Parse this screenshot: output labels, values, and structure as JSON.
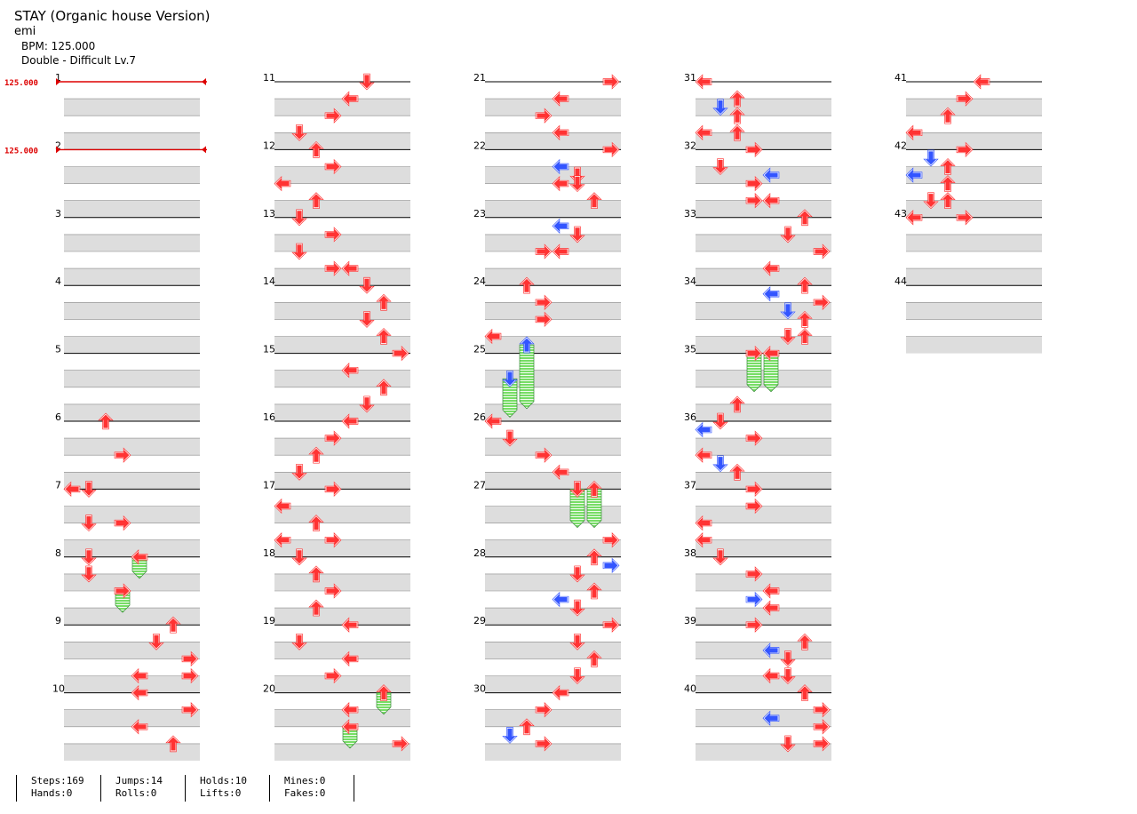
{
  "song": {
    "title": "STAY (Organic house Version)",
    "artist": "emi",
    "bpm_text": "BPM: 125.000",
    "difficulty_text": "Double - Difficult  Lv.7"
  },
  "bpm_markers": [
    {
      "measure": 1,
      "label": "125.000"
    },
    {
      "measure": 2,
      "label": "125.000"
    }
  ],
  "colors": {
    "arrow_red": "#ff3333",
    "arrow_blue": "#3355ff",
    "hold_green": "#77dd66",
    "stripe_gray": "#dddddd",
    "bpm_red": "#dd0000"
  },
  "measures": [
    {
      "label": "1",
      "notes": []
    },
    {
      "label": "2",
      "notes": []
    },
    {
      "label": "3",
      "notes": []
    },
    {
      "label": "4",
      "notes": []
    },
    {
      "label": "5",
      "notes": []
    },
    {
      "label": "6",
      "notes": [
        [
          0,
          2,
          "up",
          0
        ],
        [
          1,
          3,
          "right",
          0
        ],
        [
          2,
          1,
          "down",
          0
        ],
        [
          3,
          1,
          "down",
          0
        ]
      ]
    },
    {
      "label": "7",
      "notes": [
        [
          0,
          0,
          "left",
          0
        ],
        [
          1,
          3,
          "right",
          0
        ],
        [
          2,
          1,
          "down",
          0
        ],
        [
          2.5,
          1,
          "down",
          0
        ]
      ]
    },
    {
      "label": "8",
      "notes": [
        [
          0,
          4,
          "left",
          0,
          "hold",
          0.5
        ],
        [
          1,
          3,
          "right",
          0,
          "hold",
          0.5
        ]
      ]
    },
    {
      "label": "9",
      "notes": [
        [
          0,
          6,
          "up",
          0
        ],
        [
          0.5,
          5,
          "down",
          0
        ],
        [
          1,
          7,
          "right",
          0
        ],
        [
          1.5,
          4,
          "left",
          0
        ],
        [
          1.5,
          7,
          "right",
          0
        ]
      ]
    },
    {
      "label": "10",
      "notes": [
        [
          0,
          4,
          "left",
          0
        ],
        [
          0.5,
          7,
          "right",
          0
        ],
        [
          1,
          4,
          "left",
          0
        ],
        [
          1.5,
          6,
          "up",
          0
        ]
      ]
    },
    {
      "label": "11",
      "notes": [
        [
          0,
          5,
          "down",
          0
        ],
        [
          0.5,
          4,
          "left",
          0
        ],
        [
          1,
          3,
          "right",
          0
        ],
        [
          1.5,
          1,
          "down",
          0
        ]
      ]
    },
    {
      "label": "12",
      "notes": [
        [
          0,
          2,
          "up",
          0
        ],
        [
          0.5,
          3,
          "right",
          0
        ],
        [
          1,
          0,
          "left",
          0
        ],
        [
          1.5,
          2,
          "up",
          0
        ]
      ]
    },
    {
      "label": "13",
      "notes": [
        [
          0,
          1,
          "down",
          0
        ],
        [
          0.5,
          3,
          "right",
          0
        ],
        [
          1,
          1,
          "down",
          0
        ],
        [
          1.5,
          3,
          "right",
          0
        ],
        [
          1.5,
          4,
          "left",
          0
        ]
      ]
    },
    {
      "label": "14",
      "notes": [
        [
          0,
          5,
          "down",
          0
        ],
        [
          0.5,
          6,
          "up",
          0
        ],
        [
          1,
          5,
          "down",
          0
        ],
        [
          1.5,
          6,
          "up",
          0
        ]
      ]
    },
    {
      "label": "15",
      "notes": [
        [
          0,
          7,
          "right",
          0
        ],
        [
          0.5,
          4,
          "left",
          0
        ],
        [
          1,
          6,
          "up",
          0
        ],
        [
          1.5,
          5,
          "down",
          0
        ]
      ]
    },
    {
      "label": "16",
      "notes": [
        [
          0,
          4,
          "left",
          0
        ],
        [
          0.5,
          3,
          "right",
          0
        ],
        [
          1,
          2,
          "up",
          0
        ],
        [
          1.5,
          1,
          "down",
          0
        ]
      ]
    },
    {
      "label": "17",
      "notes": [
        [
          0,
          3,
          "right",
          0
        ],
        [
          0.5,
          0,
          "left",
          0
        ],
        [
          1,
          2,
          "up",
          0
        ],
        [
          1.5,
          0,
          "left",
          0
        ],
        [
          1.5,
          3,
          "right",
          0
        ]
      ]
    },
    {
      "label": "18",
      "notes": [
        [
          0,
          1,
          "down",
          0
        ],
        [
          0.5,
          2,
          "up",
          0
        ],
        [
          1,
          3,
          "right",
          0
        ],
        [
          1.5,
          2,
          "up",
          0
        ]
      ]
    },
    {
      "label": "19",
      "notes": [
        [
          0,
          4,
          "left",
          0
        ],
        [
          0.5,
          1,
          "down",
          0
        ],
        [
          1,
          4,
          "left",
          0
        ],
        [
          1.5,
          3,
          "right",
          0
        ]
      ]
    },
    {
      "label": "20",
      "notes": [
        [
          0,
          6,
          "up",
          0,
          "hold",
          0.5
        ],
        [
          0.5,
          4,
          "left",
          0
        ],
        [
          1,
          4,
          "left",
          0,
          "hold",
          0.5
        ],
        [
          1.5,
          7,
          "right",
          0
        ]
      ]
    },
    {
      "label": "21",
      "notes": [
        [
          0,
          7,
          "right",
          0
        ],
        [
          0.5,
          4,
          "left",
          0
        ],
        [
          1,
          3,
          "right",
          0
        ],
        [
          1.5,
          4,
          "left",
          0
        ]
      ]
    },
    {
      "label": "22",
      "notes": [
        [
          0,
          7,
          "right",
          0
        ],
        [
          0.5,
          4,
          "left",
          1
        ],
        [
          0.75,
          5,
          "down",
          0
        ],
        [
          1,
          4,
          "left",
          0
        ],
        [
          1,
          5,
          "down",
          0
        ],
        [
          1.5,
          6,
          "up",
          0
        ]
      ]
    },
    {
      "label": "23",
      "notes": [
        [
          0.25,
          4,
          "left",
          1
        ],
        [
          0.5,
          5,
          "down",
          0
        ],
        [
          1,
          3,
          "right",
          0
        ],
        [
          1,
          4,
          "left",
          0
        ]
      ]
    },
    {
      "label": "24",
      "notes": [
        [
          0,
          2,
          "up",
          0
        ],
        [
          0.5,
          3,
          "right",
          0
        ],
        [
          1,
          3,
          "right",
          0
        ],
        [
          1.5,
          0,
          "left",
          0
        ]
      ]
    },
    {
      "label": "25",
      "notes": [
        [
          -0.25,
          2,
          "up",
          1,
          "hold",
          1.75
        ],
        [
          0.75,
          1,
          "down",
          1,
          "hold",
          1.0
        ]
      ]
    },
    {
      "label": "26",
      "notes": [
        [
          0,
          0,
          "left",
          0
        ],
        [
          0.5,
          1,
          "down",
          0
        ],
        [
          1,
          3,
          "right",
          0
        ],
        [
          1.5,
          4,
          "left",
          0
        ]
      ]
    },
    {
      "label": "27",
      "notes": [
        [
          0,
          5,
          "down",
          0,
          "hold",
          1.0
        ],
        [
          0,
          6,
          "up",
          0,
          "hold",
          1.0
        ],
        [
          1.5,
          7,
          "right",
          0
        ]
      ]
    },
    {
      "label": "28",
      "notes": [
        [
          0,
          6,
          "up",
          0
        ],
        [
          0.25,
          7,
          "right",
          1
        ],
        [
          0.5,
          5,
          "down",
          0
        ],
        [
          1,
          6,
          "up",
          0
        ],
        [
          1.25,
          4,
          "left",
          1
        ],
        [
          1.5,
          5,
          "down",
          0
        ]
      ]
    },
    {
      "label": "29",
      "notes": [
        [
          0,
          7,
          "right",
          0
        ],
        [
          0.5,
          5,
          "down",
          0
        ],
        [
          1,
          6,
          "up",
          0
        ],
        [
          1.5,
          5,
          "down",
          0
        ]
      ]
    },
    {
      "label": "30",
      "notes": [
        [
          0,
          4,
          "left",
          0
        ],
        [
          0.5,
          3,
          "right",
          0
        ],
        [
          1,
          2,
          "up",
          0
        ],
        [
          1.25,
          1,
          "down",
          1
        ],
        [
          1.5,
          3,
          "right",
          0
        ]
      ]
    },
    {
      "label": "31",
      "notes": [
        [
          0,
          0,
          "left",
          0
        ],
        [
          0.5,
          2,
          "up",
          0
        ],
        [
          0.75,
          1,
          "down",
          1
        ],
        [
          1,
          2,
          "up",
          0
        ],
        [
          1.5,
          0,
          "left",
          0
        ],
        [
          1.5,
          2,
          "up",
          0
        ]
      ]
    },
    {
      "label": "32",
      "notes": [
        [
          0,
          3,
          "right",
          0
        ],
        [
          0.5,
          1,
          "down",
          0
        ],
        [
          0.75,
          4,
          "left",
          1
        ],
        [
          1,
          3,
          "right",
          0
        ],
        [
          1.5,
          3,
          "right",
          0
        ],
        [
          1.5,
          4,
          "left",
          0
        ]
      ]
    },
    {
      "label": "33",
      "notes": [
        [
          0,
          6,
          "up",
          0
        ],
        [
          0.5,
          5,
          "down",
          0
        ],
        [
          1,
          7,
          "right",
          0
        ],
        [
          1.5,
          4,
          "left",
          0
        ]
      ]
    },
    {
      "label": "34",
      "notes": [
        [
          0,
          6,
          "up",
          0
        ],
        [
          0.25,
          4,
          "left",
          1
        ],
        [
          0.5,
          7,
          "right",
          0
        ],
        [
          0.75,
          5,
          "down",
          1
        ],
        [
          1,
          6,
          "up",
          0
        ],
        [
          1.5,
          5,
          "down",
          0
        ],
        [
          1.5,
          6,
          "up",
          0
        ]
      ]
    },
    {
      "label": "35",
      "notes": [
        [
          0,
          3,
          "right",
          0,
          "hold",
          1.0
        ],
        [
          0,
          4,
          "left",
          0,
          "hold",
          1.0
        ],
        [
          1.5,
          2,
          "up",
          0
        ]
      ]
    },
    {
      "label": "36",
      "notes": [
        [
          0,
          1,
          "down",
          0
        ],
        [
          0.25,
          0,
          "left",
          1
        ],
        [
          0.5,
          3,
          "right",
          0
        ],
        [
          1,
          0,
          "left",
          0
        ],
        [
          1.25,
          1,
          "down",
          1
        ],
        [
          1.5,
          2,
          "up",
          0
        ]
      ]
    },
    {
      "label": "37",
      "notes": [
        [
          0,
          3,
          "right",
          0
        ],
        [
          0.5,
          3,
          "right",
          0
        ],
        [
          1,
          0,
          "left",
          0
        ],
        [
          1.5,
          0,
          "left",
          0
        ]
      ]
    },
    {
      "label": "38",
      "notes": [
        [
          0,
          1,
          "down",
          0
        ],
        [
          0.5,
          3,
          "right",
          0
        ],
        [
          1,
          4,
          "left",
          0
        ],
        [
          1.25,
          3,
          "right",
          1
        ],
        [
          1.5,
          4,
          "left",
          0
        ]
      ]
    },
    {
      "label": "39",
      "notes": [
        [
          0,
          3,
          "right",
          0
        ],
        [
          0.5,
          6,
          "up",
          0
        ],
        [
          0.75,
          4,
          "left",
          1
        ],
        [
          1,
          5,
          "down",
          0
        ],
        [
          1.5,
          4,
          "left",
          0
        ],
        [
          1.5,
          5,
          "down",
          0
        ]
      ]
    },
    {
      "label": "40",
      "notes": [
        [
          0,
          6,
          "up",
          0
        ],
        [
          0.5,
          7,
          "right",
          0
        ],
        [
          0.75,
          4,
          "left",
          1
        ],
        [
          1,
          7,
          "right",
          0
        ],
        [
          1.5,
          5,
          "down",
          0
        ],
        [
          1.5,
          7,
          "right",
          0
        ]
      ]
    },
    {
      "label": "41",
      "notes": [
        [
          0,
          4,
          "left",
          0
        ],
        [
          0.5,
          3,
          "right",
          0
        ],
        [
          1,
          2,
          "up",
          0
        ],
        [
          1.5,
          0,
          "left",
          0
        ]
      ]
    },
    {
      "label": "42",
      "notes": [
        [
          0,
          3,
          "right",
          0
        ],
        [
          0.25,
          1,
          "down",
          1
        ],
        [
          0.5,
          2,
          "up",
          0
        ],
        [
          0.75,
          0,
          "left",
          1
        ],
        [
          1,
          2,
          "up",
          0
        ],
        [
          1.5,
          1,
          "down",
          0
        ],
        [
          1.5,
          2,
          "up",
          0
        ]
      ]
    },
    {
      "label": "43",
      "notes": [
        [
          0,
          0,
          "left",
          0
        ],
        [
          0,
          3,
          "right",
          0
        ]
      ]
    },
    {
      "label": "44",
      "notes": []
    }
  ],
  "stats": [
    {
      "top": "Steps:169",
      "bottom": "Hands:0"
    },
    {
      "top": "Jumps:14",
      "bottom": "Rolls:0"
    },
    {
      "top": "Holds:10",
      "bottom": "Lifts:0"
    },
    {
      "top": "Mines:0",
      "bottom": "Fakes:0"
    }
  ]
}
